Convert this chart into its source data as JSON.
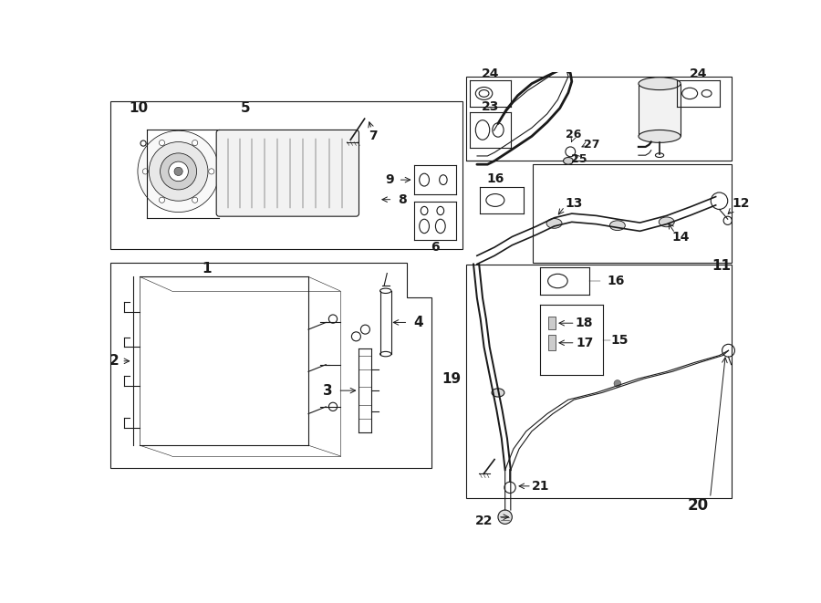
{
  "bg_color": "#ffffff",
  "line_color": "#1a1a1a",
  "lw": 0.8,
  "fig_width": 9.0,
  "fig_height": 6.61,
  "dpi": 100
}
